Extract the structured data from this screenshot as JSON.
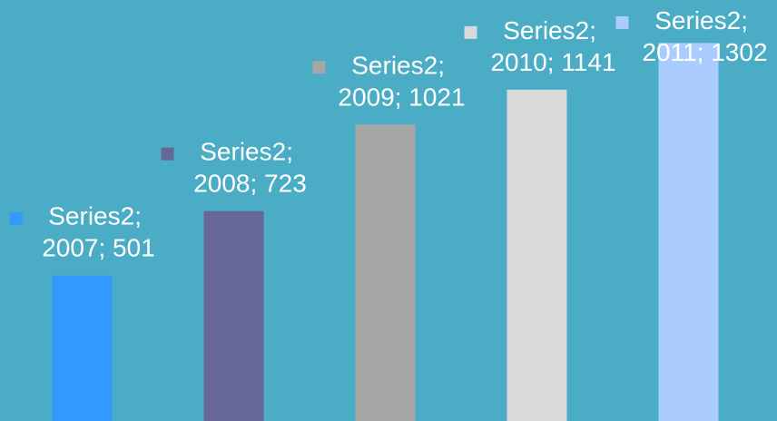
{
  "chart_data": {
    "type": "bar",
    "categories": [
      "2007",
      "2008",
      "2009",
      "2010",
      "2011"
    ],
    "values": [
      501,
      723,
      1021,
      1141,
      1302
    ],
    "value_labels": [
      "Series2; 2007; 501",
      "Series2; 2008; 723",
      "Series2; 2009; 1021",
      "Series2; 2010; 1141",
      "Series2; 2011; 1302"
    ],
    "colors": [
      "#3399ff",
      "#666699",
      "#a6a6a6",
      "#d9d9d9",
      "#aaccff"
    ],
    "ylim": [
      0,
      1450
    ]
  }
}
